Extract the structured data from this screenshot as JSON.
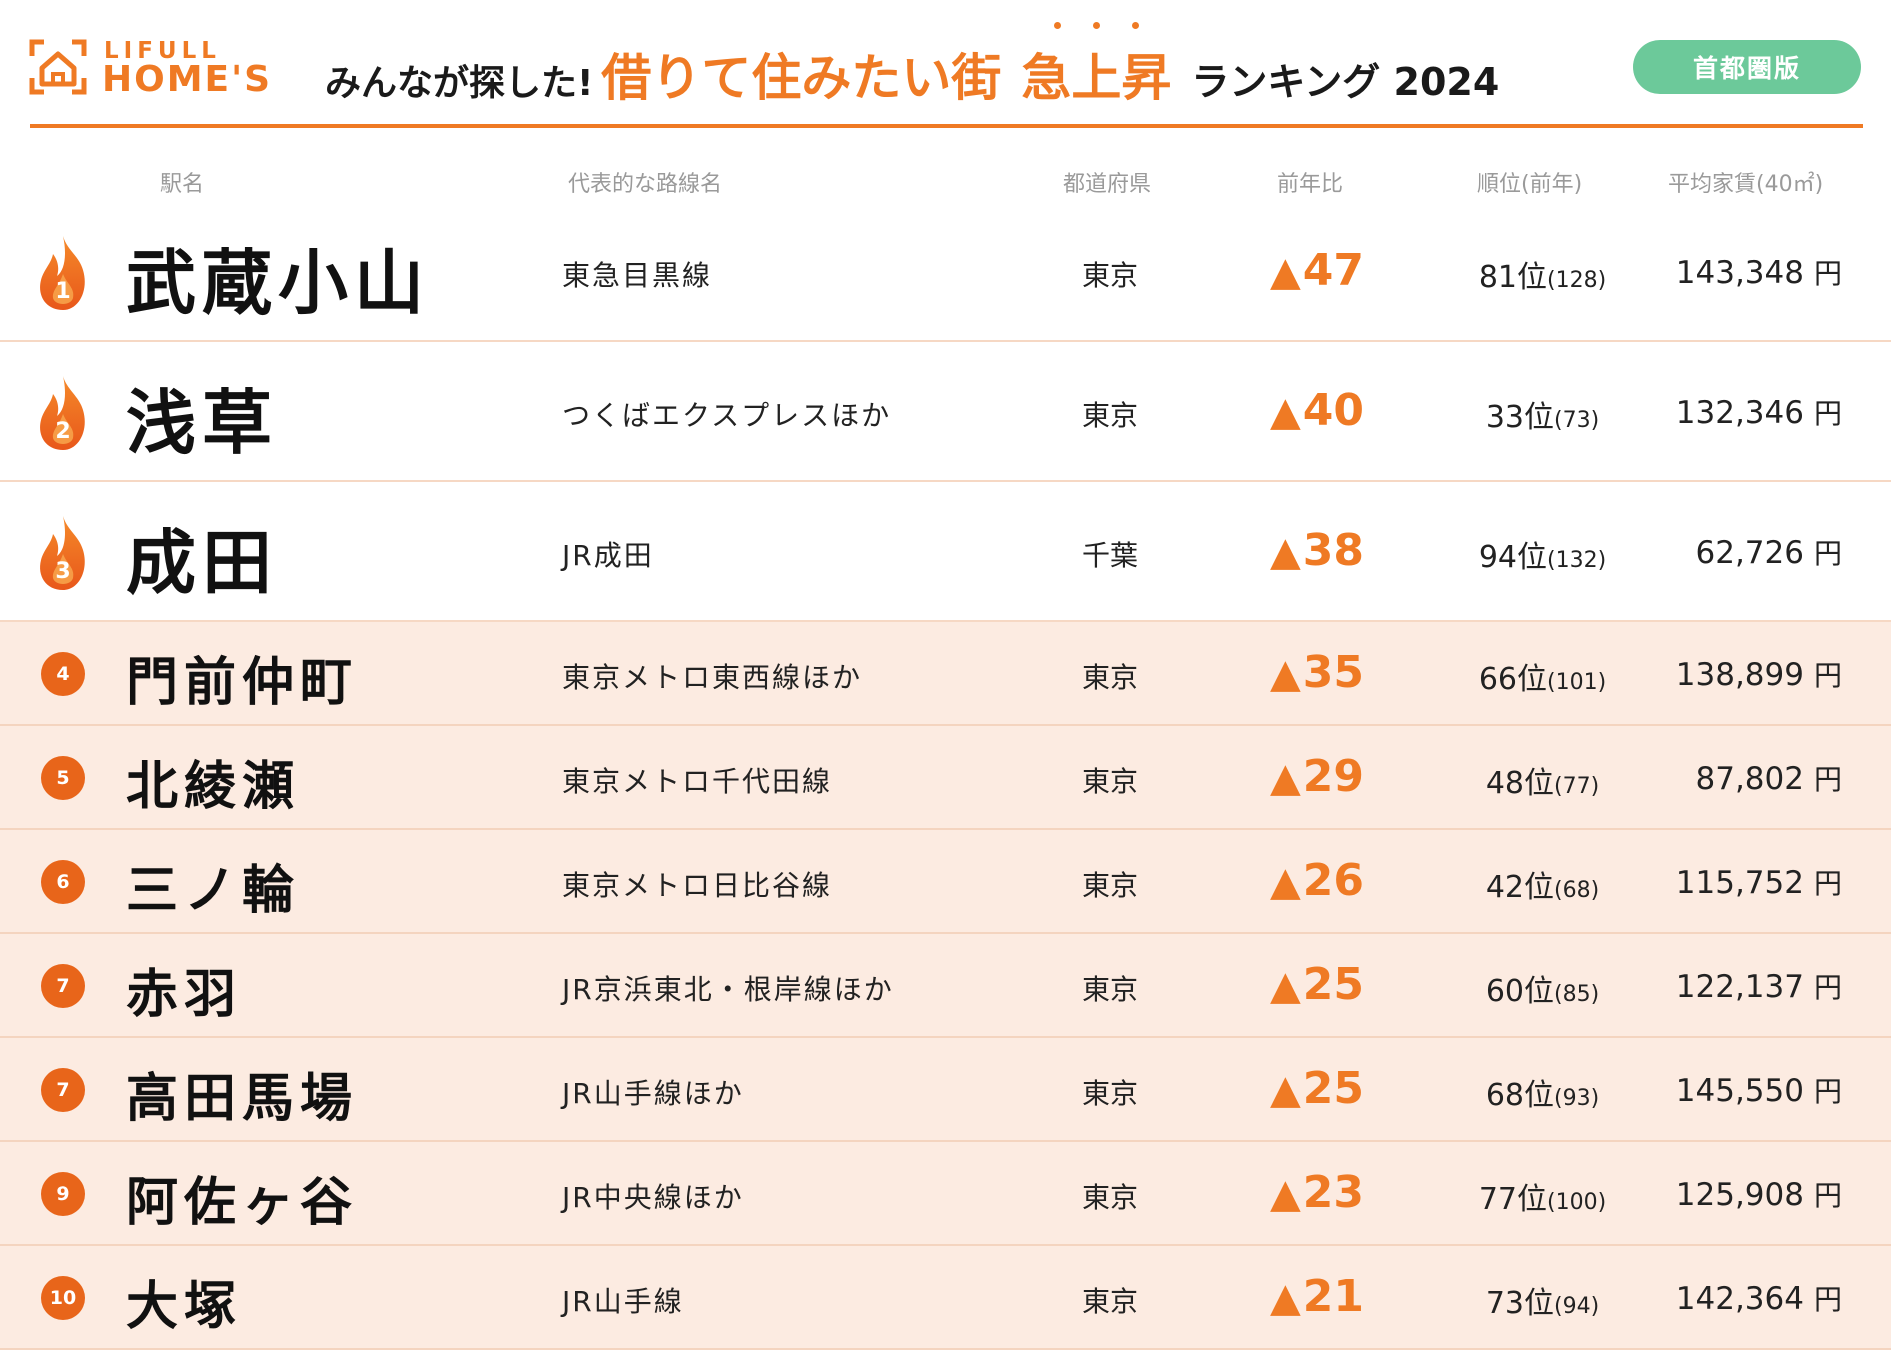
{
  "brand": {
    "logo_line1": "LIFULL",
    "logo_line2": "HOME'S"
  },
  "title": {
    "prefix": "みんなが探した!",
    "main1": "借りて住みたい街",
    "main2": "急上昇",
    "suffix": "ランキング 2024"
  },
  "edition_badge": "首都圏版",
  "columns": {
    "station": "駅名",
    "line": "代表的な路線名",
    "prefecture": "都道府県",
    "change": "前年比",
    "rank": "順位(前年)",
    "rent": "平均家賃(40㎡)"
  },
  "colors": {
    "accent": "#ef7a24",
    "badge_green": "#6cc99a",
    "row_tint": "#fcebe1"
  },
  "rows": [
    {
      "rank": "1",
      "station": "武蔵小山",
      "line": "東急目黒線",
      "prefecture": "東京",
      "change_mark": "▲",
      "change": "47",
      "current": "81位",
      "previous": "(128)",
      "rent": "143,348",
      "yen": "円",
      "icon": "flame-icon"
    },
    {
      "rank": "2",
      "station": "浅草",
      "line": "つくばエクスプレスほか",
      "prefecture": "東京",
      "change_mark": "▲",
      "change": "40",
      "current": "33位",
      "previous": "(73)",
      "rent": "132,346",
      "yen": "円",
      "icon": "flame-icon"
    },
    {
      "rank": "3",
      "station": "成田",
      "line": "JR成田",
      "prefecture": "千葉",
      "change_mark": "▲",
      "change": "38",
      "current": "94位",
      "previous": "(132)",
      "rent": "62,726",
      "yen": "円",
      "icon": "flame-icon"
    },
    {
      "rank": "4",
      "station": "門前仲町",
      "line": "東京メトロ東西線ほか",
      "prefecture": "東京",
      "change_mark": "▲",
      "change": "35",
      "current": "66位",
      "previous": "(101)",
      "rent": "138,899",
      "yen": "円",
      "icon": "rank-badge-icon"
    },
    {
      "rank": "5",
      "station": "北綾瀬",
      "line": "東京メトロ千代田線",
      "prefecture": "東京",
      "change_mark": "▲",
      "change": "29",
      "current": "48位",
      "previous": "(77)",
      "rent": "87,802",
      "yen": "円",
      "icon": "rank-badge-icon"
    },
    {
      "rank": "6",
      "station": "三ノ輪",
      "line": "東京メトロ日比谷線",
      "prefecture": "東京",
      "change_mark": "▲",
      "change": "26",
      "current": "42位",
      "previous": "(68)",
      "rent": "115,752",
      "yen": "円",
      "icon": "rank-badge-icon"
    },
    {
      "rank": "7",
      "station": "赤羽",
      "line": "JR京浜東北・根岸線ほか",
      "prefecture": "東京",
      "change_mark": "▲",
      "change": "25",
      "current": "60位",
      "previous": "(85)",
      "rent": "122,137",
      "yen": "円",
      "icon": "rank-badge-icon"
    },
    {
      "rank": "7",
      "station": "高田馬場",
      "line": "JR山手線ほか",
      "prefecture": "東京",
      "change_mark": "▲",
      "change": "25",
      "current": "68位",
      "previous": "(93)",
      "rent": "145,550",
      "yen": "円",
      "icon": "rank-badge-icon"
    },
    {
      "rank": "9",
      "station": "阿佐ヶ谷",
      "line": "JR中央線ほか",
      "prefecture": "東京",
      "change_mark": "▲",
      "change": "23",
      "current": "77位",
      "previous": "(100)",
      "rent": "125,908",
      "yen": "円",
      "icon": "rank-badge-icon"
    },
    {
      "rank": "10",
      "station": "大塚",
      "line": "JR山手線",
      "prefecture": "東京",
      "change_mark": "▲",
      "change": "21",
      "current": "73位",
      "previous": "(94)",
      "rent": "142,364",
      "yen": "円",
      "icon": "rank-badge-icon"
    }
  ]
}
